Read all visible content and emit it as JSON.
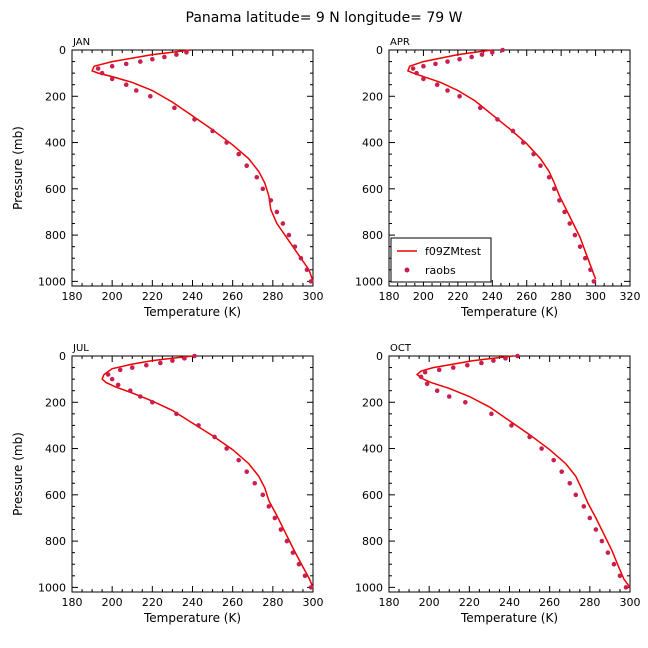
{
  "figure": {
    "title": "Panama  latitude= 9 N longitude= 79 W"
  },
  "chart_data": [
    {
      "type": "line",
      "month_label": "JAN",
      "xlabel": "Temperature (K)",
      "ylabel": "Pressure (mb)",
      "xlim": [
        180,
        300
      ],
      "ylim": [
        1020,
        0
      ],
      "xticks": [
        180,
        200,
        220,
        240,
        260,
        280,
        300
      ],
      "yticks": [
        0,
        200,
        400,
        600,
        800,
        1000
      ],
      "series": [
        {
          "name": "f09ZMtest",
          "color": "#ee0000",
          "marker": "line",
          "x": [
            239,
            230,
            220,
            210,
            200,
            191,
            190,
            193,
            200,
            210,
            220,
            230,
            240,
            250,
            260,
            268,
            273,
            276,
            278,
            279,
            282,
            286,
            290,
            294,
            298,
            300
          ],
          "y": [
            0,
            10,
            20,
            35,
            50,
            70,
            90,
            100,
            115,
            140,
            175,
            225,
            285,
            345,
            410,
            470,
            525,
            575,
            630,
            690,
            750,
            800,
            850,
            900,
            950,
            1000
          ]
        },
        {
          "name": "raobs",
          "color": "#c81e50",
          "marker": "dot",
          "x": [
            237,
            232,
            226,
            220,
            214,
            207,
            200,
            193,
            195,
            200,
            207,
            212,
            219,
            231,
            241,
            250,
            257,
            263,
            267,
            272,
            275,
            279,
            282,
            285,
            288,
            291,
            294,
            297,
            299
          ],
          "y": [
            10,
            20,
            30,
            40,
            50,
            60,
            70,
            80,
            100,
            125,
            150,
            175,
            200,
            250,
            300,
            350,
            400,
            450,
            500,
            550,
            600,
            650,
            700,
            750,
            800,
            850,
            900,
            950,
            1000
          ]
        }
      ]
    },
    {
      "type": "line",
      "month_label": "APR",
      "xlabel": "Temperature (K)",
      "ylabel": "",
      "xlim": [
        180,
        320
      ],
      "ylim": [
        1020,
        0
      ],
      "xticks": [
        180,
        200,
        220,
        240,
        260,
        280,
        300,
        320
      ],
      "yticks": [
        0,
        200,
        400,
        600,
        800,
        1000
      ],
      "legend_position": "bottom-left",
      "series": [
        {
          "name": "f09ZMtest",
          "color": "#ee0000",
          "marker": "line",
          "x": [
            240,
            230,
            220,
            210,
            200,
            192,
            191,
            194,
            200,
            210,
            220,
            230,
            240,
            250,
            260,
            268,
            273,
            276,
            279,
            283,
            287,
            291,
            294,
            297,
            300
          ],
          "y": [
            0,
            10,
            20,
            35,
            50,
            70,
            90,
            100,
            115,
            140,
            175,
            220,
            280,
            340,
            405,
            470,
            525,
            575,
            630,
            690,
            750,
            810,
            870,
            930,
            990
          ]
        },
        {
          "name": "raobs",
          "color": "#c81e50",
          "marker": "dot",
          "x": [
            246,
            240,
            234,
            228,
            221,
            214,
            207,
            200,
            194,
            196,
            200,
            208,
            214,
            221,
            233,
            243,
            252,
            258,
            264,
            268,
            273,
            276,
            279,
            282,
            285,
            288,
            291,
            294,
            297,
            299
          ],
          "y": [
            0,
            10,
            20,
            30,
            40,
            50,
            60,
            70,
            80,
            100,
            125,
            150,
            175,
            200,
            250,
            300,
            350,
            400,
            450,
            500,
            550,
            600,
            650,
            700,
            750,
            800,
            850,
            900,
            950,
            1000
          ]
        }
      ]
    },
    {
      "type": "line",
      "month_label": "JUL",
      "xlabel": "Temperature (K)",
      "ylabel": "Pressure (mb)",
      "xlim": [
        180,
        300
      ],
      "ylim": [
        1020,
        0
      ],
      "xticks": [
        180,
        200,
        220,
        240,
        260,
        280,
        300
      ],
      "yticks": [
        0,
        200,
        400,
        600,
        800,
        1000
      ],
      "series": [
        {
          "name": "f09ZMtest",
          "color": "#ee0000",
          "marker": "line",
          "x": [
            240,
            230,
            220,
            210,
            200,
            196,
            195,
            197,
            202,
            210,
            220,
            230,
            240,
            250,
            260,
            268,
            273,
            276,
            278,
            282,
            286,
            290,
            294,
            298,
            300
          ],
          "y": [
            0,
            10,
            20,
            35,
            55,
            80,
            100,
            115,
            135,
            160,
            195,
            235,
            290,
            345,
            405,
            465,
            520,
            570,
            625,
            690,
            760,
            830,
            895,
            960,
            1000
          ]
        },
        {
          "name": "raobs",
          "color": "#c81e50",
          "marker": "dot",
          "x": [
            241,
            236,
            230,
            224,
            217,
            210,
            204,
            198,
            200,
            203,
            209,
            214,
            220,
            232,
            243,
            251,
            257,
            263,
            267,
            271,
            275,
            278,
            281,
            284,
            287,
            290,
            293,
            296,
            299
          ],
          "y": [
            0,
            10,
            20,
            30,
            40,
            50,
            60,
            80,
            100,
            125,
            150,
            175,
            200,
            250,
            300,
            350,
            400,
            450,
            500,
            550,
            600,
            650,
            700,
            750,
            800,
            850,
            900,
            950,
            1000
          ]
        }
      ]
    },
    {
      "type": "line",
      "month_label": "OCT",
      "xlabel": "Temperature (K)",
      "ylabel": "",
      "xlim": [
        180,
        300
      ],
      "ylim": [
        1020,
        0
      ],
      "xticks": [
        180,
        200,
        220,
        240,
        260,
        280,
        300
      ],
      "yticks": [
        0,
        200,
        400,
        600,
        800,
        1000
      ],
      "series": [
        {
          "name": "f09ZMtest",
          "color": "#ee0000",
          "marker": "line",
          "x": [
            242,
            232,
            222,
            212,
            202,
            196,
            194,
            196,
            201,
            210,
            220,
            230,
            240,
            250,
            260,
            268,
            273,
            276,
            279,
            283,
            287,
            291,
            294,
            297,
            300
          ],
          "y": [
            0,
            10,
            20,
            35,
            50,
            65,
            80,
            95,
            115,
            140,
            175,
            220,
            280,
            340,
            405,
            465,
            520,
            575,
            635,
            700,
            770,
            840,
            905,
            965,
            1000
          ]
        },
        {
          "name": "raobs",
          "color": "#c81e50",
          "marker": "dot",
          "x": [
            244,
            238,
            232,
            226,
            219,
            212,
            205,
            198,
            196,
            199,
            204,
            210,
            218,
            231,
            241,
            250,
            256,
            262,
            266,
            270,
            273,
            277,
            280,
            283,
            286,
            289,
            292,
            295,
            298
          ],
          "y": [
            0,
            10,
            20,
            30,
            40,
            50,
            60,
            70,
            90,
            120,
            150,
            175,
            200,
            250,
            300,
            350,
            400,
            450,
            500,
            550,
            600,
            650,
            700,
            750,
            800,
            850,
            900,
            950,
            1000
          ]
        }
      ]
    }
  ]
}
